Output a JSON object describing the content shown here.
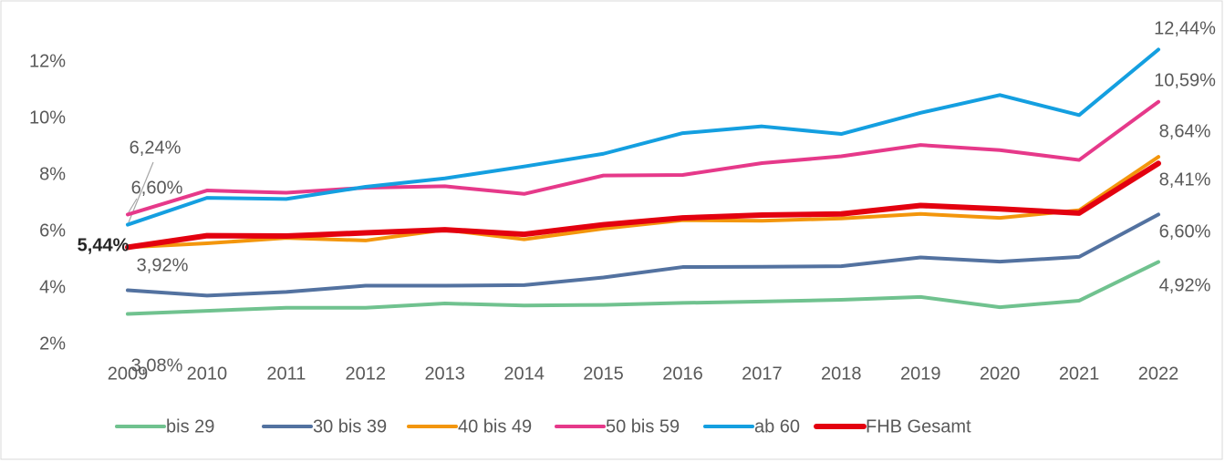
{
  "chart_data": {
    "type": "line",
    "categories": [
      "2009",
      "2010",
      "2011",
      "2012",
      "2013",
      "2014",
      "2015",
      "2016",
      "2017",
      "2018",
      "2019",
      "2020",
      "2021",
      "2022"
    ],
    "ylim": [
      2,
      14
    ],
    "yticks": [
      {
        "value": 2,
        "label": "2%"
      },
      {
        "value": 4,
        "label": "4%"
      },
      {
        "value": 6,
        "label": "6%"
      },
      {
        "value": 8,
        "label": "8%"
      },
      {
        "value": 10,
        "label": "10%"
      },
      {
        "value": 12,
        "label": "12%"
      }
    ],
    "grid": false,
    "legend": "bottom",
    "series": [
      {
        "name": "bis 29",
        "color": "#70c28f",
        "values": [
          3.08,
          3.19,
          3.3,
          3.3,
          3.45,
          3.38,
          3.4,
          3.47,
          3.52,
          3.58,
          3.68,
          3.32,
          3.55,
          4.92
        ],
        "value_labels": [
          "3,08%",
          null,
          null,
          null,
          null,
          null,
          null,
          null,
          null,
          null,
          null,
          null,
          null,
          "4,92%"
        ]
      },
      {
        "name": "30 bis 39",
        "color": "#5372a0",
        "values": [
          3.92,
          3.73,
          3.86,
          4.08,
          4.08,
          4.1,
          4.37,
          4.74,
          4.75,
          4.77,
          5.08,
          4.93,
          5.1,
          6.6
        ],
        "value_labels": [
          "3,92%",
          null,
          null,
          null,
          null,
          null,
          null,
          null,
          null,
          null,
          null,
          null,
          null,
          "6,60%"
        ]
      },
      {
        "name": "40 bis 49",
        "color": "#f3960c",
        "values": [
          5.44,
          5.58,
          5.77,
          5.68,
          6.06,
          5.72,
          6.1,
          6.4,
          6.38,
          6.46,
          6.62,
          6.48,
          6.75,
          8.64
        ],
        "value_labels": [
          null,
          null,
          null,
          null,
          null,
          null,
          null,
          null,
          null,
          null,
          null,
          null,
          null,
          "8,64%"
        ]
      },
      {
        "name": "50 bis 59",
        "color": "#e6398a",
        "values": [
          6.6,
          7.45,
          7.37,
          7.55,
          7.6,
          7.33,
          7.98,
          8.0,
          8.42,
          8.66,
          9.06,
          8.88,
          8.53,
          10.59
        ],
        "value_labels": [
          "6,60%",
          null,
          null,
          null,
          null,
          null,
          null,
          null,
          null,
          null,
          null,
          null,
          null,
          "10,59%"
        ]
      },
      {
        "name": "ab 60",
        "color": "#149fe0",
        "values": [
          6.24,
          7.19,
          7.15,
          7.58,
          7.88,
          8.3,
          8.75,
          9.48,
          9.72,
          9.45,
          10.2,
          10.83,
          10.12,
          12.44
        ],
        "value_labels": [
          "6,24%",
          null,
          null,
          null,
          null,
          null,
          null,
          null,
          null,
          null,
          null,
          null,
          null,
          "12,44%"
        ]
      },
      {
        "name": "FHB Gesamt",
        "color": "#e3000f",
        "values": [
          5.44,
          5.85,
          5.84,
          5.95,
          6.06,
          5.9,
          6.24,
          6.48,
          6.58,
          6.62,
          6.92,
          6.8,
          6.65,
          8.41
        ],
        "value_labels": [
          "5,44%",
          null,
          null,
          null,
          null,
          null,
          null,
          null,
          null,
          null,
          null,
          null,
          null,
          "8,41%"
        ]
      }
    ]
  }
}
